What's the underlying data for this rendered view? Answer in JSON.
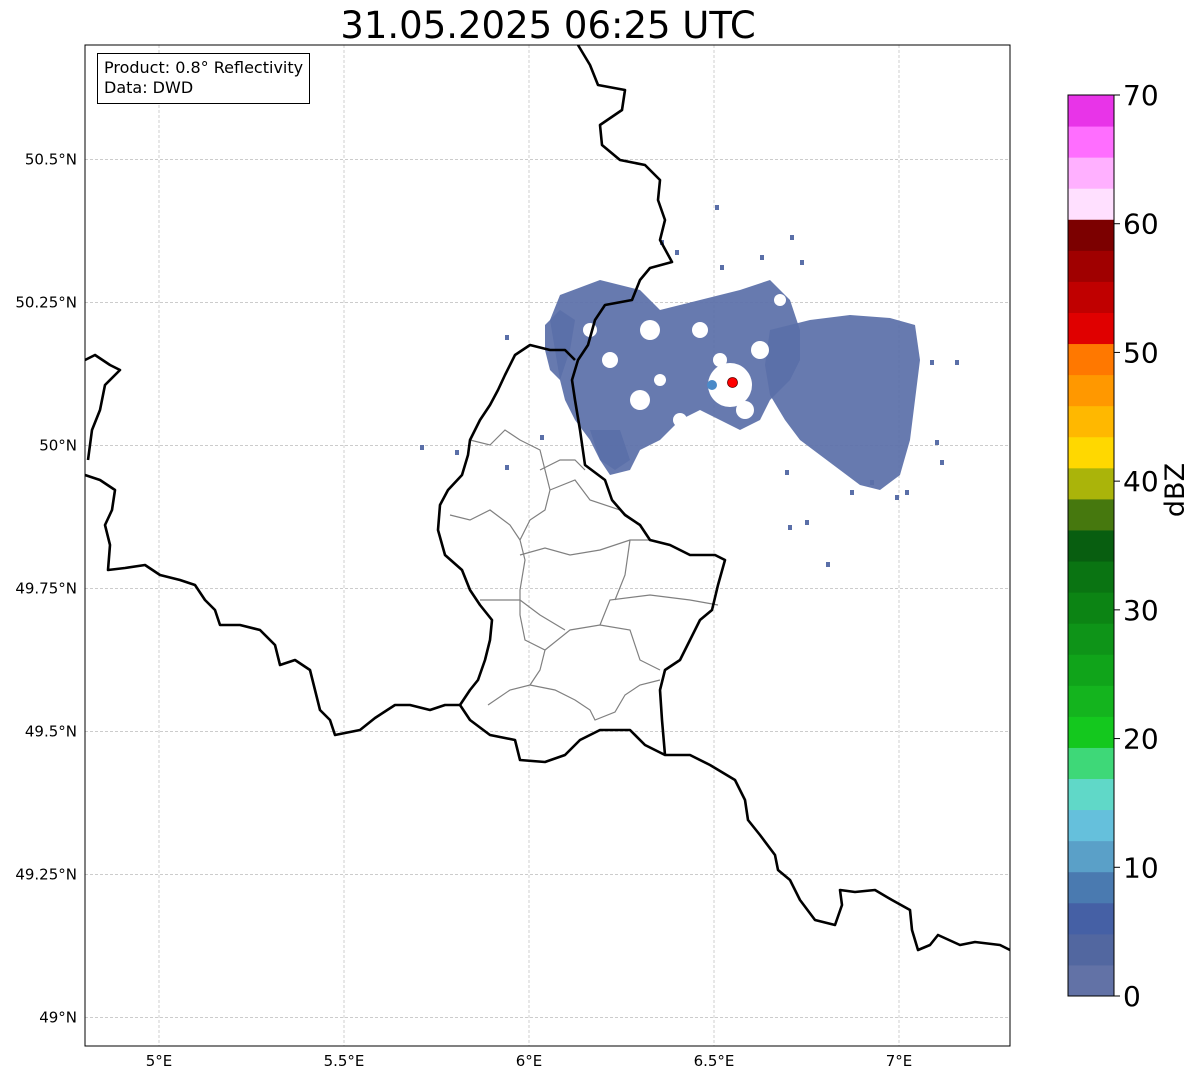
{
  "title": "31.05.2025 06:25 UTC",
  "legend": {
    "product": "Product: 0.8° Reflectivity",
    "data": "Data: DWD"
  },
  "map": {
    "lon_range": [
      4.8,
      7.3
    ],
    "lat_range": [
      48.95,
      50.7
    ],
    "lon_ticks": [
      {
        "value": 5.0,
        "label": "5°E"
      },
      {
        "value": 5.5,
        "label": "5.5°E"
      },
      {
        "value": 6.0,
        "label": "6°E"
      },
      {
        "value": 6.5,
        "label": "6.5°E"
      },
      {
        "value": 7.0,
        "label": "7°E"
      }
    ],
    "lat_ticks": [
      {
        "value": 49.0,
        "label": "49°N"
      },
      {
        "value": 49.25,
        "label": "49.25°N"
      },
      {
        "value": 49.5,
        "label": "49.5°N"
      },
      {
        "value": 49.75,
        "label": "49.75°N"
      },
      {
        "value": 50.0,
        "label": "50°N"
      },
      {
        "value": 50.25,
        "label": "50.25°N"
      },
      {
        "value": 50.5,
        "label": "50.5°N"
      }
    ],
    "grid": true,
    "radar_site": {
      "lon": 6.55,
      "lat": 50.11,
      "color": "#ff0000"
    },
    "echo_color": "#5a6fa8",
    "border_color": "#000000",
    "district_color": "#808080"
  },
  "colorbar": {
    "label": "dBZ",
    "range": [
      0,
      70
    ],
    "ticks": [
      {
        "value": 0,
        "label": "0"
      },
      {
        "value": 10,
        "label": "10"
      },
      {
        "value": 20,
        "label": "20"
      },
      {
        "value": 30,
        "label": "30"
      },
      {
        "value": 40,
        "label": "40"
      },
      {
        "value": 50,
        "label": "50"
      },
      {
        "value": 60,
        "label": "60"
      },
      {
        "value": 70,
        "label": "70"
      }
    ],
    "colors": [
      "#6272a6",
      "#5267a0",
      "#4560a5",
      "#4a7ab0",
      "#5aa0c8",
      "#65c0dc",
      "#60d8c8",
      "#3ed878",
      "#14c81e",
      "#14b41e",
      "#10a41a",
      "#0e9418",
      "#0c8414",
      "#0a7412",
      "#085e10",
      "#46780e",
      "#aab40a",
      "#ffd800",
      "#ffb800",
      "#ff9800",
      "#ff7800",
      "#e00000",
      "#c00000",
      "#a00000",
      "#7c0000",
      "#ffe0ff",
      "#ffb0ff",
      "#ff6eff",
      "#e834e8"
    ]
  }
}
